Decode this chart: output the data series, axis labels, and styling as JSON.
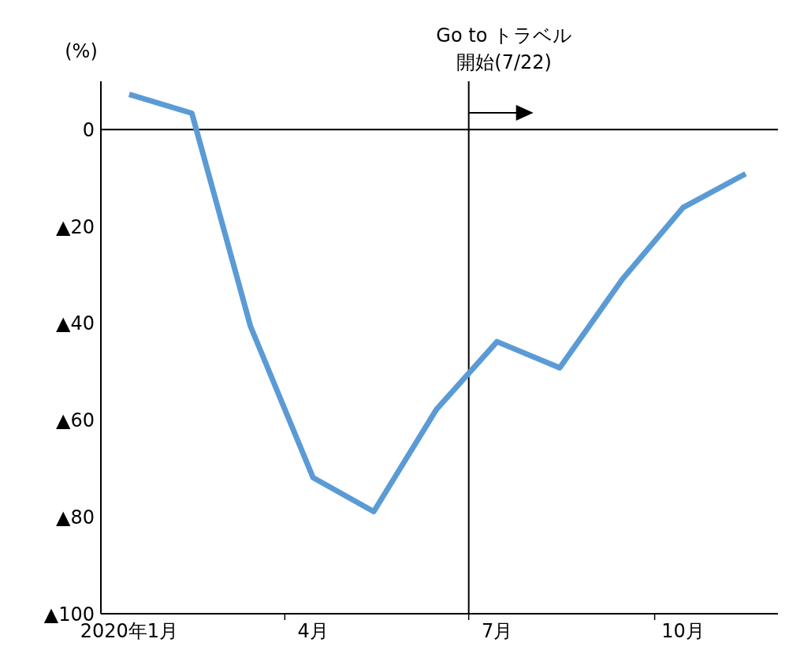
{
  "chart_data": {
    "type": "line",
    "ylabel": "(%)",
    "x": [
      "2020-01-15",
      "2020-02-15",
      "2020-03-15",
      "2020-04-15",
      "2020-05-15",
      "2020-06-15",
      "2020-07-15",
      "2020-08-15",
      "2020-09-15",
      "2020-10-15",
      "2020-11-15"
    ],
    "series": [
      {
        "color": "#5b9bd5",
        "values": [
          7.3,
          3.4,
          -40.6,
          -71.9,
          -78.9,
          -57.8,
          -43.8,
          -49.2,
          -30.9,
          -16.1,
          -9.1
        ]
      }
    ],
    "xlim": [
      "2020-01-01",
      "2020-12-01"
    ],
    "xticks": [
      {
        "value": "2020-01-15",
        "label": "2020年1月"
      },
      {
        "value": "2020-04-01",
        "label": null
      },
      {
        "value": "2020-04-15",
        "label": "4月"
      },
      {
        "value": "2020-07-01",
        "label": null
      },
      {
        "value": "2020-07-15",
        "label": "7月"
      },
      {
        "value": "2020-10-01",
        "label": null
      },
      {
        "value": "2020-10-15",
        "label": "10月"
      }
    ],
    "ylim": [
      -100,
      10
    ],
    "yticks": [
      {
        "value": 0,
        "label": "0"
      },
      {
        "value": -20,
        "label": "▲20"
      },
      {
        "value": -40,
        "label": "▲40"
      },
      {
        "value": -60,
        "label": "▲60"
      },
      {
        "value": -80,
        "label": "▲80"
      },
      {
        "value": -100,
        "label": "▲100"
      }
    ],
    "ref_lines": [
      {
        "axis": "y",
        "value": 0,
        "label": null
      },
      {
        "axis": "x",
        "value": "2020-07-01",
        "label": "Go to トラベル開始(7/22)"
      }
    ],
    "grid": false,
    "legend": false,
    "marker": "none",
    "line_style": "solid"
  }
}
